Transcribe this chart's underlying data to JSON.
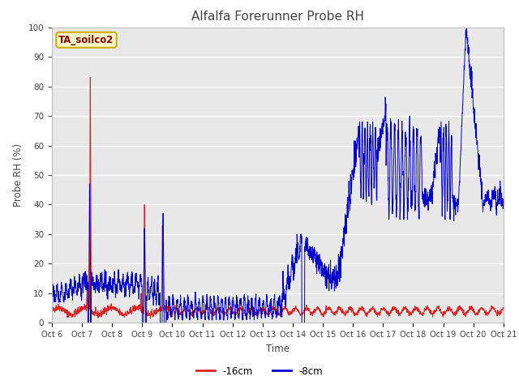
{
  "title": "Alfalfa Forerunner Probe RH",
  "ylabel": "Probe RH (%)",
  "xlabel": "Time",
  "ylim": [
    0,
    100
  ],
  "fig_bg_color": "#ffffff",
  "plot_bg_color": "#e8e8e8",
  "legend_label": "TA_soilco2",
  "legend_bg": "#ffffcc",
  "legend_border": "#ccaa00",
  "line_red_label": "-16cm",
  "line_blue_label": "-8cm",
  "line_red_color": "#dd2222",
  "line_blue_color": "#0000cc",
  "xtick_labels": [
    "Oct 6",
    "Oct 7",
    "Oct 8",
    "Oct 9",
    "Oct 10",
    "Oct 11",
    "Oct 12",
    "Oct 13",
    "Oct 14",
    "Oct 15",
    "Oct 16",
    "Oct 17",
    "Oct 18",
    "Oct 19",
    "Oct 20",
    "Oct 21"
  ],
  "grid_color": "#ffffff",
  "title_fontsize": 11
}
